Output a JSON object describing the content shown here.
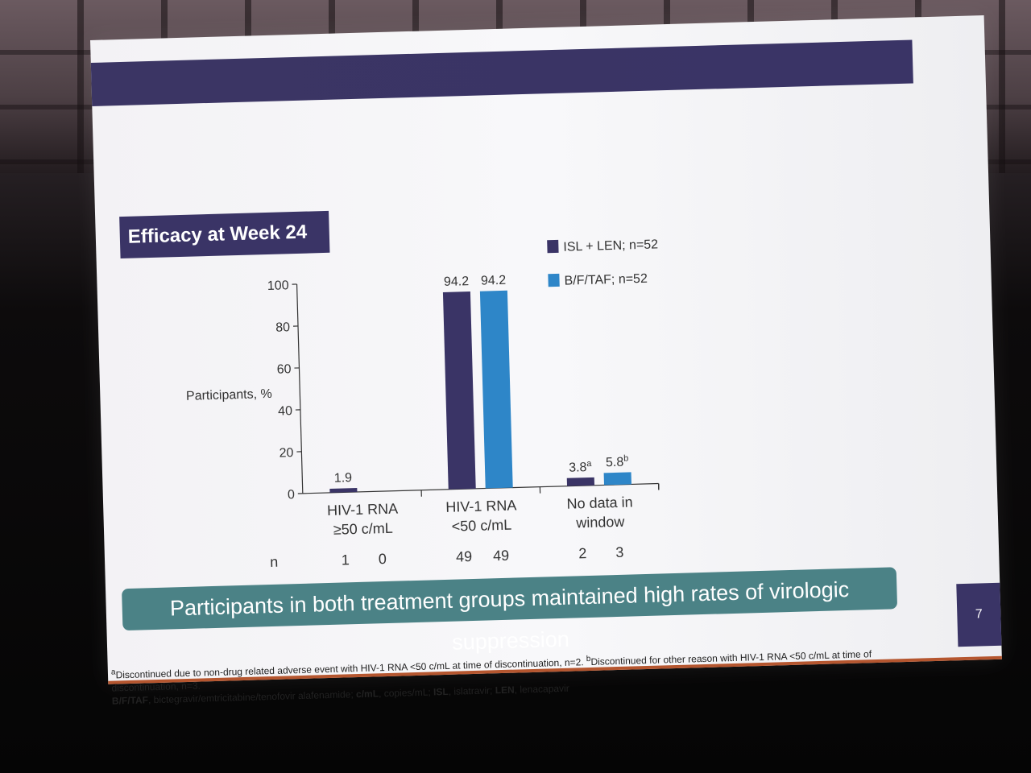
{
  "slide": {
    "title": "Efficacy at Week 24",
    "banner": "Participants in both treatment groups maintained high rates of virologic suppression",
    "page_number": "7",
    "footnote_a_sup": "a",
    "footnote_a": "Discontinued due to non-drug related adverse event with HIV-1 RNA <50 c/mL at time of discontinuation, n=2. ",
    "footnote_b_sup": "b",
    "footnote_b": "Discontinued for other reason with HIV-1 RNA <50 c/mL at time of",
    "footnote_b_cont": "discontinuation, n=3.",
    "abbr": [
      {
        "term": "B/F/TAF",
        "def": ", bictegravir/emtricitabine/tenofovir alafenamide; "
      },
      {
        "term": "c/mL",
        "def": ", copies/mL; "
      },
      {
        "term": "ISL",
        "def": ", islatravir; "
      },
      {
        "term": "LEN",
        "def": ", lenacapavir"
      }
    ]
  },
  "colors": {
    "isl_len": "#3a3466",
    "bftaf": "#2e86c8",
    "title_bg": "#3a3466",
    "banner_bg": "#4b8286",
    "accent_rule": "#b5562f"
  },
  "chart_data": {
    "type": "bar",
    "ylabel": "Participants, %",
    "ylim": [
      0,
      100
    ],
    "yticks": [
      "0",
      "20",
      "40",
      "60",
      "80",
      "100"
    ],
    "categories": [
      {
        "line1": "HIV-1 RNA",
        "line2": "≥50 c/mL"
      },
      {
        "line1": "HIV-1 RNA",
        "line2": "<50 c/mL"
      },
      {
        "line1": "No data in",
        "line2": "window"
      }
    ],
    "series": [
      {
        "name": "ISL + LEN; n=52",
        "values": [
          1.9,
          94.2,
          3.8
        ],
        "labels": [
          "1.9",
          "94.2",
          "3.8"
        ],
        "sups": [
          "",
          "",
          "a"
        ],
        "n": [
          "1",
          "49",
          "2"
        ]
      },
      {
        "name": "B/F/TAF; n=52",
        "values": [
          0,
          94.2,
          5.8
        ],
        "labels": [
          "",
          "94.2",
          "5.8"
        ],
        "sups": [
          "",
          "",
          "b"
        ],
        "n": [
          "0",
          "49",
          "3"
        ]
      }
    ],
    "n_label": "n",
    "legend": "top-right"
  }
}
